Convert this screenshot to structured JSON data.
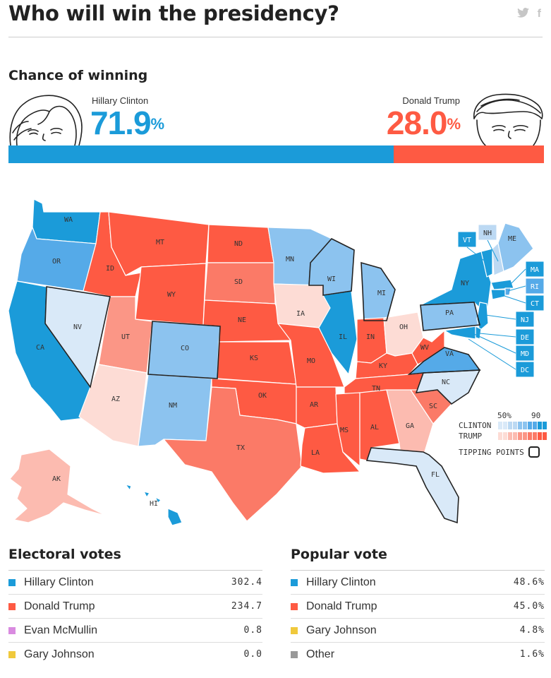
{
  "title": "Who will win the presidency?",
  "social": {
    "twitter_icon": "twitter-icon",
    "facebook_icon": "facebook-icon"
  },
  "chance": {
    "heading": "Chance of winning",
    "clinton": {
      "name": "Hillary Clinton",
      "value": "71.9",
      "unit": "%",
      "fraction": 0.719
    },
    "trump": {
      "name": "Donald Trump",
      "value": "28.0",
      "unit": "%",
      "fraction": 0.28
    }
  },
  "colors": {
    "clinton": "#1b9bd9",
    "trump": "#fe5a43",
    "mcmullin": "#d98be0",
    "johnson": "#f0c93c",
    "other": "#999999"
  },
  "map": {
    "legend": {
      "low": "50%",
      "high": "90",
      "clinton_label": "CLINTON",
      "trump_label": "TRUMP",
      "tipping_label": "TIPPING POINTS"
    },
    "states": [
      {
        "abbr": "WA",
        "party": "D",
        "strength": 5
      },
      {
        "abbr": "OR",
        "party": "D",
        "strength": 4
      },
      {
        "abbr": "CA",
        "party": "D",
        "strength": 5
      },
      {
        "abbr": "NV",
        "party": "D",
        "strength": 1,
        "tipping": true
      },
      {
        "abbr": "ID",
        "party": "R",
        "strength": 5
      },
      {
        "abbr": "MT",
        "party": "R",
        "strength": 5
      },
      {
        "abbr": "WY",
        "party": "R",
        "strength": 5
      },
      {
        "abbr": "UT",
        "party": "R",
        "strength": 3
      },
      {
        "abbr": "AZ",
        "party": "R",
        "strength": 1
      },
      {
        "abbr": "CO",
        "party": "D",
        "strength": 3,
        "tipping": true
      },
      {
        "abbr": "NM",
        "party": "D",
        "strength": 3
      },
      {
        "abbr": "ND",
        "party": "R",
        "strength": 5
      },
      {
        "abbr": "SD",
        "party": "R",
        "strength": 4
      },
      {
        "abbr": "NE",
        "party": "R",
        "strength": 5
      },
      {
        "abbr": "KS",
        "party": "R",
        "strength": 5
      },
      {
        "abbr": "OK",
        "party": "R",
        "strength": 5
      },
      {
        "abbr": "TX",
        "party": "R",
        "strength": 4
      },
      {
        "abbr": "MN",
        "party": "D",
        "strength": 3
      },
      {
        "abbr": "IA",
        "party": "R",
        "strength": 1
      },
      {
        "abbr": "MO",
        "party": "R",
        "strength": 5
      },
      {
        "abbr": "AR",
        "party": "R",
        "strength": 5
      },
      {
        "abbr": "LA",
        "party": "R",
        "strength": 5
      },
      {
        "abbr": "WI",
        "party": "D",
        "strength": 3,
        "tipping": true
      },
      {
        "abbr": "IL",
        "party": "D",
        "strength": 5
      },
      {
        "abbr": "MI",
        "party": "D",
        "strength": 3,
        "tipping": true
      },
      {
        "abbr": "IN",
        "party": "R",
        "strength": 5
      },
      {
        "abbr": "OH",
        "party": "R",
        "strength": 1
      },
      {
        "abbr": "KY",
        "party": "R",
        "strength": 5
      },
      {
        "abbr": "TN",
        "party": "R",
        "strength": 5
      },
      {
        "abbr": "MS",
        "party": "R",
        "strength": 5
      },
      {
        "abbr": "AL",
        "party": "R",
        "strength": 5
      },
      {
        "abbr": "GA",
        "party": "R",
        "strength": 2
      },
      {
        "abbr": "FL",
        "party": "D",
        "strength": 1,
        "tipping": true
      },
      {
        "abbr": "SC",
        "party": "R",
        "strength": 4
      },
      {
        "abbr": "NC",
        "party": "D",
        "strength": 1,
        "tipping": true
      },
      {
        "abbr": "VA",
        "party": "D",
        "strength": 4,
        "tipping": true
      },
      {
        "abbr": "WV",
        "party": "R",
        "strength": 5
      },
      {
        "abbr": "PA",
        "party": "D",
        "strength": 3,
        "tipping": true
      },
      {
        "abbr": "NY",
        "party": "D",
        "strength": 5
      },
      {
        "abbr": "VT",
        "party": "D",
        "strength": 5
      },
      {
        "abbr": "NH",
        "party": "D",
        "strength": 2
      },
      {
        "abbr": "ME",
        "party": "D",
        "strength": 3
      },
      {
        "abbr": "MA",
        "party": "D",
        "strength": 5
      },
      {
        "abbr": "RI",
        "party": "D",
        "strength": 4
      },
      {
        "abbr": "CT",
        "party": "D",
        "strength": 5
      },
      {
        "abbr": "NJ",
        "party": "D",
        "strength": 5
      },
      {
        "abbr": "DE",
        "party": "D",
        "strength": 5
      },
      {
        "abbr": "MD",
        "party": "D",
        "strength": 5
      },
      {
        "abbr": "DC",
        "party": "D",
        "strength": 5
      },
      {
        "abbr": "AK",
        "party": "R",
        "strength": 2
      },
      {
        "abbr": "HI",
        "party": "D",
        "strength": 5
      }
    ]
  },
  "electoral": {
    "heading": "Electoral votes",
    "rows": [
      {
        "name": "Hillary Clinton",
        "value": "302.4"
      },
      {
        "name": "Donald Trump",
        "value": "234.7"
      },
      {
        "name": "Evan McMullin",
        "value": "0.8"
      },
      {
        "name": "Gary Johnson",
        "value": "0.0"
      }
    ]
  },
  "popular": {
    "heading": "Popular vote",
    "rows": [
      {
        "name": "Hillary Clinton",
        "value": "48.6%"
      },
      {
        "name": "Donald Trump",
        "value": "45.0%"
      },
      {
        "name": "Gary Johnson",
        "value": "4.8%"
      },
      {
        "name": "Other",
        "value": "1.6%"
      }
    ]
  }
}
